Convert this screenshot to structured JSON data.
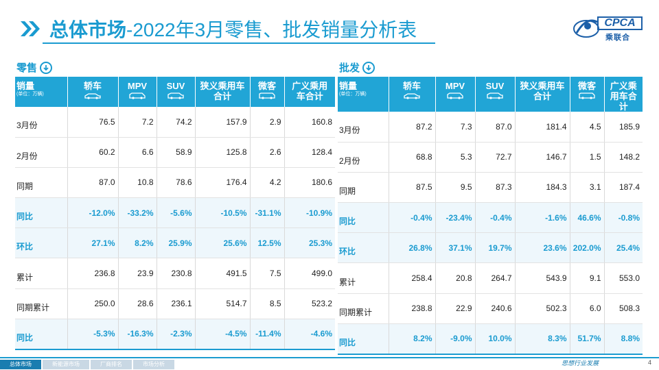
{
  "header": {
    "title_bold": "总体市场",
    "title_rest": "-2022年3月零售、批发销量分析表"
  },
  "logo": {
    "brand": "CPCA",
    "cn": "乘联合"
  },
  "colors": {
    "accent": "#1a9bd0",
    "header_bg": "#21a5d6",
    "highlight_row_bg": "#eef7fc",
    "logo": "#1c5fa8"
  },
  "retail": {
    "label": "零售",
    "corner_title": "销量",
    "corner_unit": "(单位：万辆)",
    "columns": [
      {
        "label": "轿车",
        "icon": "sedan-icon"
      },
      {
        "label": "MPV",
        "icon": "mpv-icon"
      },
      {
        "label": "SUV",
        "icon": "suv-icon"
      },
      {
        "label": "狭义乘用车合计",
        "icon": ""
      },
      {
        "label": "微客",
        "icon": "minibus-icon"
      },
      {
        "label": "广义乘用车合计",
        "icon": ""
      }
    ],
    "rows": [
      {
        "label": "3月份",
        "values": [
          "76.5",
          "7.2",
          "74.2",
          "157.9",
          "2.9",
          "160.8"
        ],
        "highlight": false
      },
      {
        "label": "2月份",
        "values": [
          "60.2",
          "6.6",
          "58.9",
          "125.8",
          "2.6",
          "128.4"
        ],
        "highlight": false
      },
      {
        "label": "同期",
        "values": [
          "87.0",
          "10.8",
          "78.6",
          "176.4",
          "4.2",
          "180.6"
        ],
        "highlight": false
      },
      {
        "label": "同比",
        "values": [
          "-12.0%",
          "-33.2%",
          "-5.6%",
          "-10.5%",
          "-31.1%",
          "-10.9%"
        ],
        "highlight": true
      },
      {
        "label": "环比",
        "values": [
          "27.1%",
          "8.2%",
          "25.9%",
          "25.6%",
          "12.5%",
          "25.3%"
        ],
        "highlight": true
      },
      {
        "label": "累计",
        "values": [
          "236.8",
          "23.9",
          "230.8",
          "491.5",
          "7.5",
          "499.0"
        ],
        "highlight": false
      },
      {
        "label": "同期累计",
        "values": [
          "250.0",
          "28.6",
          "236.1",
          "514.7",
          "8.5",
          "523.2"
        ],
        "highlight": false
      },
      {
        "label": "同比",
        "values": [
          "-5.3%",
          "-16.3%",
          "-2.3%",
          "-4.5%",
          "-11.4%",
          "-4.6%"
        ],
        "highlight": true
      }
    ]
  },
  "wholesale": {
    "label": "批发",
    "corner_title": "销量",
    "corner_unit": "(单位：万辆)",
    "columns": [
      {
        "label": "轿车",
        "icon": "sedan-icon"
      },
      {
        "label": "MPV",
        "icon": "mpv-icon"
      },
      {
        "label": "SUV",
        "icon": "suv-icon"
      },
      {
        "label": "狭义乘用车合计",
        "icon": ""
      },
      {
        "label": "微客",
        "icon": "minibus-icon"
      },
      {
        "label": "广义乘用车合计",
        "icon": ""
      }
    ],
    "rows": [
      {
        "label": "3月份",
        "values": [
          "87.2",
          "7.3",
          "87.0",
          "181.4",
          "4.5",
          "185.9"
        ],
        "highlight": false
      },
      {
        "label": "2月份",
        "values": [
          "68.8",
          "5.3",
          "72.7",
          "146.7",
          "1.5",
          "148.2"
        ],
        "highlight": false
      },
      {
        "label": "同期",
        "values": [
          "87.5",
          "9.5",
          "87.3",
          "184.3",
          "3.1",
          "187.4"
        ],
        "highlight": false
      },
      {
        "label": "同比",
        "values": [
          "-0.4%",
          "-23.4%",
          "-0.4%",
          "-1.6%",
          "46.6%",
          "-0.8%"
        ],
        "highlight": true
      },
      {
        "label": "环比",
        "values": [
          "26.8%",
          "37.1%",
          "19.7%",
          "23.6%",
          "202.0%",
          "25.4%"
        ],
        "highlight": true
      },
      {
        "label": "累计",
        "values": [
          "258.4",
          "20.8",
          "264.7",
          "543.9",
          "9.1",
          "553.0"
        ],
        "highlight": false
      },
      {
        "label": "同期累计",
        "values": [
          "238.8",
          "22.9",
          "240.6",
          "502.3",
          "6.0",
          "508.3"
        ],
        "highlight": false
      },
      {
        "label": "同比",
        "values": [
          "8.2%",
          "-9.0%",
          "10.0%",
          "8.3%",
          "51.7%",
          "8.8%"
        ],
        "highlight": true
      }
    ]
  },
  "footer": {
    "tabs": [
      "总体市场",
      "新能源市场",
      "厂商排名",
      "市场分析"
    ],
    "active_tab": 0,
    "slogan": "思想行业发展",
    "page": "4"
  }
}
